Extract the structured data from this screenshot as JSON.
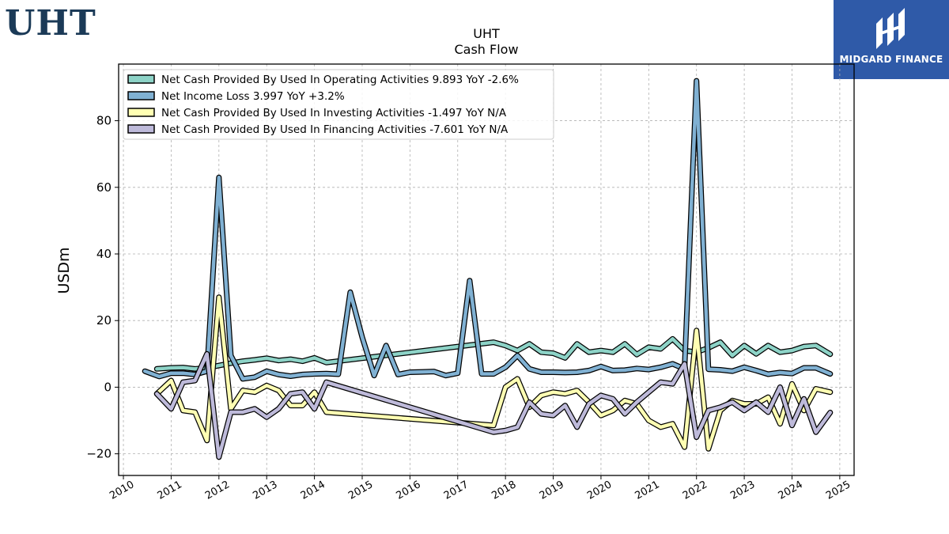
{
  "header": {
    "ticker_logo": "UHT",
    "brand_name": "MIDGARD FINANCE"
  },
  "chart_data": {
    "type": "line",
    "title": "UHT",
    "subtitle": "Cash Flow",
    "xlabel": "",
    "ylabel": "USDm",
    "xlim": [
      2009.9,
      2025.3
    ],
    "ylim": [
      -26.5,
      97
    ],
    "xticks": [
      "2010",
      "2011",
      "2012",
      "2013",
      "2014",
      "2015",
      "2016",
      "2017",
      "2018",
      "2019",
      "2020",
      "2021",
      "2022",
      "2023",
      "2024",
      "2025"
    ],
    "yticks": [
      -20,
      0,
      20,
      40,
      60,
      80
    ],
    "grid": true,
    "legend_position": "top-left",
    "series": [
      {
        "name": "Net Cash Provided By Used In Operating Activities",
        "legend_label": "Net Cash Provided By Used In Operating Activities  9.893 YoY -2.6%",
        "color": "#8dd3c7",
        "x": [
          2010.7,
          2011.0,
          2011.25,
          2011.5,
          2011.75,
          2012.0,
          2012.25,
          2012.5,
          2012.75,
          2013.0,
          2013.25,
          2013.5,
          2013.75,
          2014.0,
          2014.25,
          2017.75,
          2018.0,
          2018.25,
          2018.5,
          2018.75,
          2019.0,
          2019.25,
          2019.5,
          2019.75,
          2020.0,
          2020.25,
          2020.5,
          2020.75,
          2021.0,
          2021.25,
          2021.5,
          2021.75,
          2022.0,
          2022.25,
          2022.5,
          2022.75,
          2023.0,
          2023.25,
          2023.5,
          2023.75,
          2024.0,
          2024.25,
          2024.5,
          2024.8
        ],
        "values": [
          5.5,
          5.8,
          5.9,
          5.5,
          5.8,
          6.5,
          7.2,
          7.8,
          8.2,
          8.7,
          8.0,
          8.4,
          7.8,
          8.8,
          7.4,
          13.5,
          12.5,
          11.0,
          13.0,
          10.5,
          10.2,
          8.8,
          13.0,
          10.5,
          11.0,
          10.5,
          13.0,
          9.8,
          12.0,
          11.5,
          14.5,
          11.0,
          10.5,
          11.8,
          13.5,
          9.5,
          12.5,
          10.0,
          12.5,
          10.5,
          11.0,
          12.2,
          12.5,
          9.9
        ]
      },
      {
        "name": "Net Income Loss",
        "legend_label": "Net Income Loss  3.997 YoY +3.2%",
        "color": "#80b1d3",
        "x": [
          2010.45,
          2010.75,
          2011.0,
          2011.25,
          2011.5,
          2011.75,
          2012.0,
          2012.25,
          2012.5,
          2012.75,
          2013.0,
          2013.25,
          2013.5,
          2013.75,
          2014.0,
          2014.25,
          2014.5,
          2014.75,
          2015.0,
          2015.25,
          2015.5,
          2015.75,
          2016.0,
          2016.25,
          2016.5,
          2016.75,
          2017.0,
          2017.25,
          2017.5,
          2017.75,
          2018.0,
          2018.25,
          2018.5,
          2018.75,
          2019.0,
          2019.25,
          2019.5,
          2019.75,
          2020.0,
          2020.25,
          2020.5,
          2020.75,
          2021.0,
          2021.25,
          2021.5,
          2021.75,
          2022.0,
          2022.25,
          2022.5,
          2022.75,
          2023.0,
          2023.25,
          2023.5,
          2023.75,
          2024.0,
          2024.25,
          2024.5,
          2024.8
        ],
        "values": [
          4.8,
          3.2,
          4.2,
          4.2,
          3.8,
          4.8,
          63.0,
          9.5,
          2.5,
          3.0,
          4.8,
          3.8,
          3.3,
          3.8,
          4.0,
          4.1,
          3.9,
          28.5,
          15.0,
          3.5,
          12.5,
          3.8,
          4.5,
          4.6,
          4.7,
          3.5,
          4.2,
          32.0,
          4.0,
          4.0,
          6.0,
          9.5,
          5.5,
          4.5,
          4.5,
          4.4,
          4.5,
          5.0,
          6.2,
          5.0,
          5.1,
          5.6,
          5.3,
          6.0,
          7.0,
          5.5,
          92.0,
          5.4,
          5.2,
          4.8,
          6.0,
          5.0,
          3.9,
          4.4,
          4.1,
          5.8,
          5.8,
          4.0
        ]
      },
      {
        "name": "Net Cash Provided By Used In Investing Activities",
        "legend_label": "Net Cash Provided By Used In Investing Activities  -1.497 YoY N/A",
        "color": "#ffffb3",
        "x": [
          2010.7,
          2011.0,
          2011.25,
          2011.5,
          2011.75,
          2012.0,
          2012.25,
          2012.5,
          2012.75,
          2013.0,
          2013.25,
          2013.5,
          2013.75,
          2014.0,
          2014.25,
          2017.75,
          2018.0,
          2018.25,
          2018.5,
          2018.75,
          2019.0,
          2019.25,
          2019.5,
          2019.75,
          2020.0,
          2020.25,
          2020.5,
          2020.75,
          2021.0,
          2021.25,
          2021.5,
          2021.75,
          2022.0,
          2022.25,
          2022.5,
          2022.75,
          2023.0,
          2023.25,
          2023.5,
          2023.75,
          2024.0,
          2024.25,
          2024.5,
          2024.8
        ],
        "values": [
          -2.0,
          2.0,
          -7.0,
          -7.5,
          -16.0,
          27.0,
          -6.5,
          -1.0,
          -1.5,
          0.5,
          -1.0,
          -5.5,
          -5.5,
          -1.5,
          -7.5,
          -11.5,
          0.0,
          2.5,
          -6.0,
          -2.5,
          -1.5,
          -2.0,
          -1.0,
          -4.5,
          -8.5,
          -7.0,
          -4.0,
          -5.0,
          -10.0,
          -12.0,
          -11.0,
          -18.0,
          17.0,
          -18.5,
          -7.0,
          -4.0,
          -5.0,
          -5.0,
          -3.0,
          -11.0,
          1.0,
          -7.0,
          -0.5,
          -1.5
        ]
      },
      {
        "name": "Net Cash Provided By Used In Financing Activities",
        "legend_label": "Net Cash Provided By Used In Financing Activities  -7.601 YoY N/A",
        "color": "#bebada",
        "x": [
          2010.7,
          2011.0,
          2011.25,
          2011.5,
          2011.75,
          2012.0,
          2012.25,
          2012.5,
          2012.75,
          2013.0,
          2013.25,
          2013.5,
          2013.75,
          2014.0,
          2014.25,
          2017.75,
          2018.0,
          2018.25,
          2018.5,
          2018.75,
          2019.0,
          2019.25,
          2019.5,
          2019.75,
          2020.0,
          2020.25,
          2020.5,
          2020.75,
          2021.0,
          2021.25,
          2021.5,
          2021.75,
          2022.0,
          2022.25,
          2022.5,
          2022.75,
          2023.0,
          2023.25,
          2023.5,
          2023.75,
          2024.0,
          2024.25,
          2024.5,
          2024.8
        ],
        "values": [
          -2.0,
          -6.5,
          1.5,
          2.0,
          10.0,
          -21.0,
          -7.5,
          -7.5,
          -6.5,
          -9.0,
          -6.5,
          -2.0,
          -1.5,
          -6.5,
          1.5,
          -13.5,
          -13.0,
          -12.0,
          -4.5,
          -8.0,
          -8.5,
          -5.5,
          -12.0,
          -5.0,
          -2.5,
          -3.5,
          -8.0,
          -4.5,
          -1.5,
          1.5,
          1.0,
          7.0,
          -15.0,
          -7.0,
          -6.0,
          -4.5,
          -7.0,
          -4.5,
          -7.5,
          0.0,
          -11.5,
          -3.5,
          -13.5,
          -7.6
        ]
      }
    ]
  }
}
